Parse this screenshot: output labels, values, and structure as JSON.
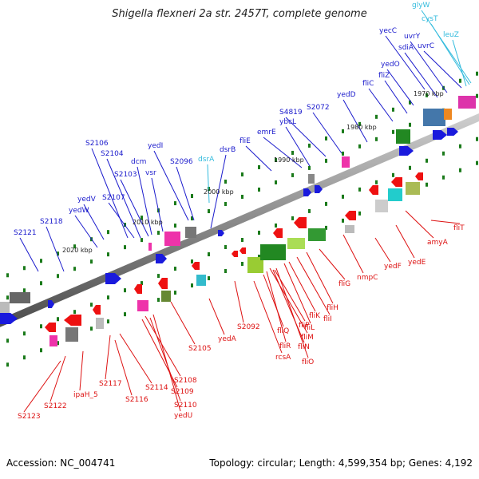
{
  "title": "Shigella flexneri 2a str. 2457T, complete genome",
  "footer": {
    "accession": "Accession: NC_004741",
    "topology": "Topology: circular; Length: 4,599,354 bp; Genes: 4,192"
  },
  "colors": {
    "forward_label": "#1a1acc",
    "reverse_label": "#dd1111",
    "rna_label": "#33bbdd",
    "backbone": "#888888",
    "tick": "#1a7a1a"
  },
  "scale_labels": [
    "1970 kbp",
    "1980 kbp",
    "1990 kbp",
    "2000 kbp",
    "2010 kbp",
    "2020 kbp"
  ],
  "forward_genes": [
    "S2121",
    "S2118",
    "yedW",
    "yedV",
    "S2107",
    "S2106",
    "S2104",
    "S2103",
    "dcm",
    "vsr",
    "yedI",
    "S2096",
    "dsrB",
    "fliE",
    "emrE",
    "ybcL",
    "S4819",
    "S2072",
    "yedD",
    "fliC",
    "fliZ",
    "yedO",
    "sdiA",
    "uvrY",
    "yecC",
    "uvrC"
  ],
  "rna_genes": [
    "dsrA",
    "glyW",
    "cysT",
    "leuZ"
  ],
  "reverse_genes": [
    "S2123",
    "S2122",
    "ipaH_5",
    "S2117",
    "S2116",
    "S2114",
    "S2109",
    "S2108",
    "S2110",
    "yedU",
    "S2105",
    "yedA",
    "S2092",
    "fliQ",
    "fliR",
    "rcsA",
    "fliP",
    "fliN",
    "fliM",
    "fliO",
    "fliL",
    "fliK",
    "fliI",
    "fliH",
    "fliG",
    "nmpC",
    "yedF",
    "yedE",
    "amyA",
    "fliT"
  ]
}
